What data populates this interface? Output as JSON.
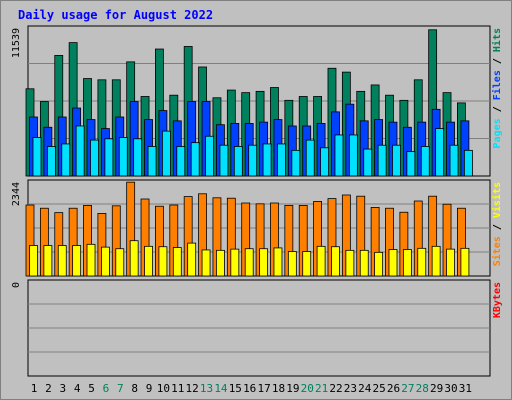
{
  "chart_data": {
    "type": "bar",
    "title": "Daily usage for August 2022",
    "days": [
      "1",
      "2",
      "3",
      "4",
      "5",
      "6",
      "7",
      "8",
      "9",
      "10",
      "11",
      "12",
      "13",
      "14",
      "15",
      "16",
      "17",
      "18",
      "19",
      "20",
      "21",
      "22",
      "23",
      "24",
      "25",
      "26",
      "27",
      "28",
      "29",
      "30",
      "31"
    ],
    "weekend_days": [
      "6",
      "7",
      "13",
      "14",
      "20",
      "21",
      "27",
      "28"
    ],
    "panels": [
      {
        "name": "hits-files-pages",
        "ymax_label": "11539",
        "ymax": 11539,
        "legend": [
          {
            "text": "Pages",
            "color": "#00e0ff"
          },
          {
            "text": " / ",
            "color": "#000000"
          },
          {
            "text": "Files",
            "color": "#0040ff"
          },
          {
            "text": " / ",
            "color": "#000000"
          },
          {
            "text": "Hits",
            "color": "#00805c"
          }
        ],
        "series": [
          {
            "name": "Hits",
            "color": "#00805c",
            "values": [
              6800,
              5800,
              9400,
              10400,
              7600,
              7500,
              7500,
              8900,
              6200,
              9900,
              6300,
              10100,
              8500,
              6100,
              6700,
              6500,
              6600,
              6900,
              5900,
              6200,
              6200,
              8400,
              8100,
              6600,
              7100,
              6300,
              5900,
              7500,
              11400,
              6500,
              5700
            ]
          },
          {
            "name": "Files",
            "color": "#0040ff",
            "values": [
              4600,
              3800,
              4600,
              5300,
              4400,
              3700,
              4600,
              5800,
              4400,
              5100,
              4300,
              5800,
              5800,
              4000,
              4100,
              4100,
              4200,
              4400,
              3900,
              3900,
              4100,
              5000,
              5600,
              4300,
              4400,
              4200,
              3800,
              4200,
              5200,
              4200,
              4300
            ]
          },
          {
            "name": "Pages",
            "color": "#00e0ff",
            "values": [
              3000,
              2300,
              2500,
              3900,
              2800,
              2900,
              3000,
              2900,
              2300,
              3500,
              2300,
              2600,
              3100,
              2400,
              2300,
              2400,
              2500,
              2500,
              2000,
              2800,
              2200,
              3200,
              3200,
              2100,
              2400,
              2400,
              1900,
              2300,
              3700,
              2400,
              2000
            ]
          }
        ]
      },
      {
        "name": "visits-sites",
        "ymax_label": "2344",
        "ymax": 2344,
        "legend": [
          {
            "text": "Sites",
            "color": "#ff8000"
          },
          {
            "text": " / ",
            "color": "#000000"
          },
          {
            "text": "Visits",
            "color": "#ffff00"
          }
        ],
        "series": [
          {
            "name": "Visits",
            "color": "#ff8000",
            "values": [
              1770,
              1690,
              1580,
              1690,
              1760,
              1560,
              1750,
              2340,
              1920,
              1740,
              1770,
              1980,
              2050,
              1950,
              1940,
              1820,
              1800,
              1820,
              1760,
              1760,
              1860,
              1930,
              2020,
              1990,
              1710,
              1690,
              1590,
              1870,
              1990,
              1790,
              1690
            ]
          },
          {
            "name": "Sites",
            "color": "#ffff00",
            "values": [
              760,
              760,
              760,
              760,
              790,
              720,
              680,
              880,
              740,
              730,
              710,
              820,
              650,
              640,
              670,
              680,
              680,
              700,
              610,
              610,
              740,
              730,
              640,
              640,
              590,
              660,
              660,
              690,
              740,
              670,
              690
            ]
          }
        ]
      },
      {
        "name": "kbytes",
        "ymax_label": "0",
        "ymax": 0,
        "legend": [
          {
            "text": "KBytes",
            "color": "#ff0000"
          }
        ],
        "series": [
          {
            "name": "KBytes",
            "color": "#ff0000",
            "values": []
          }
        ]
      }
    ],
    "colors": {
      "background": "#c0c0c0",
      "weekday_label": "#000000",
      "weekend_label": "#00805c",
      "title": "#0000ff",
      "grid": "#808080"
    }
  }
}
